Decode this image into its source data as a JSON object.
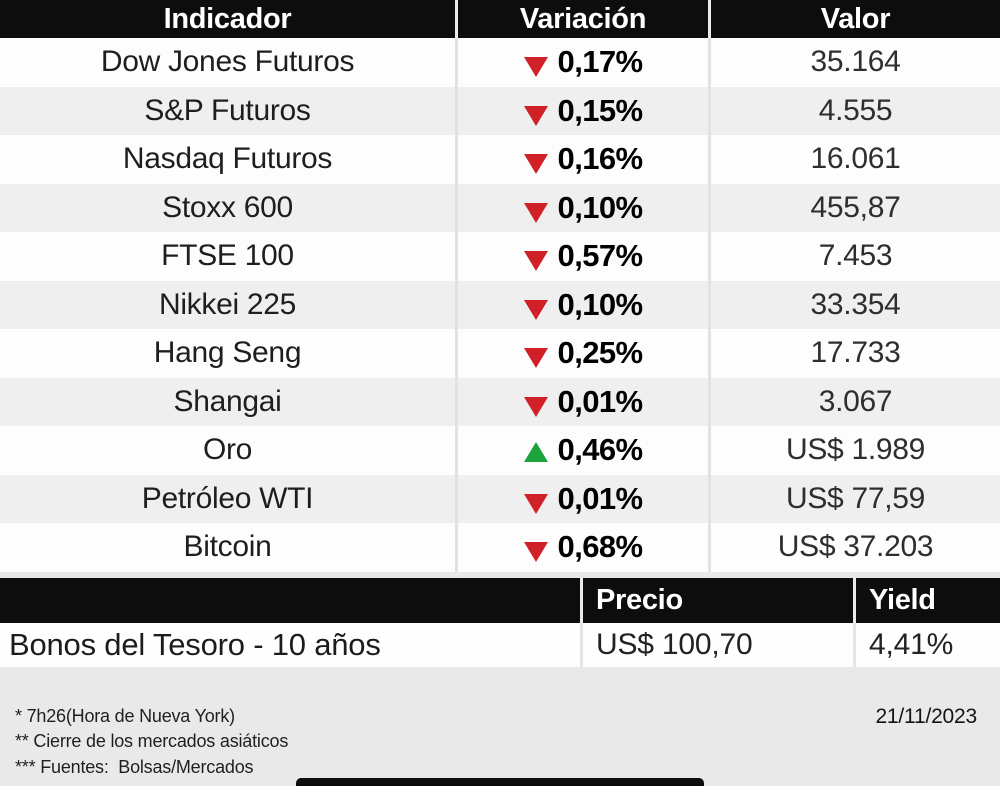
{
  "colors": {
    "header_bg": "#0d0d0d",
    "page_bg": "#e9e9e9",
    "row_alt_bg": "#efefef",
    "down_red": "#cf2127",
    "up_green": "#1ea23c"
  },
  "indicators_table": {
    "headers": {
      "indicator": "Indicador",
      "variation": "Variación",
      "value": "Valor"
    },
    "rows": [
      {
        "indicator": "Dow Jones Futuros",
        "direction": "down",
        "variation": "0,17%",
        "value": "35.164"
      },
      {
        "indicator": "S&P Futuros",
        "direction": "down",
        "variation": "0,15%",
        "value": "4.555"
      },
      {
        "indicator": "Nasdaq Futuros",
        "direction": "down",
        "variation": "0,16%",
        "value": "16.061"
      },
      {
        "indicator": "Stoxx 600",
        "direction": "down",
        "variation": "0,10%",
        "value": "455,87"
      },
      {
        "indicator": "FTSE 100",
        "direction": "down",
        "variation": "0,57%",
        "value": "7.453"
      },
      {
        "indicator": "Nikkei 225",
        "direction": "down",
        "variation": "0,10%",
        "value": "33.354"
      },
      {
        "indicator": "Hang Seng",
        "direction": "down",
        "variation": "0,25%",
        "value": "17.733"
      },
      {
        "indicator": "Shangai",
        "direction": "down",
        "variation": "0,01%",
        "value": "3.067"
      },
      {
        "indicator": "Oro",
        "direction": "up",
        "variation": "0,46%",
        "value": "US$ 1.989"
      },
      {
        "indicator": "Petróleo WTI",
        "direction": "down",
        "variation": "0,01%",
        "value": "US$ 77,59"
      },
      {
        "indicator": "Bitcoin",
        "direction": "down",
        "variation": "0,68%",
        "value": "US$ 37.203"
      }
    ]
  },
  "bonds_table": {
    "headers": {
      "price": "Precio",
      "yield": "Yield"
    },
    "row": {
      "label": "Bonos del Tesoro - 10 años",
      "price": "US$ 100,70",
      "yield": "4,41%"
    }
  },
  "footer": {
    "notes": [
      "* 7h26(Hora de Nueva York)",
      "** Cierre de los mercados asiáticos",
      "*** Fuentes:  Bolsas/Mercados"
    ],
    "date": "21/11/2023"
  },
  "chart_data": {
    "type": "table",
    "columns": [
      "Indicador",
      "Variación",
      "Valor"
    ],
    "rows": [
      [
        "Dow Jones Futuros",
        "-0,17%",
        "35.164"
      ],
      [
        "S&P Futuros",
        "-0,15%",
        "4.555"
      ],
      [
        "Nasdaq Futuros",
        "-0,16%",
        "16.061"
      ],
      [
        "Stoxx 600",
        "-0,10%",
        "455,87"
      ],
      [
        "FTSE 100",
        "-0,57%",
        "7.453"
      ],
      [
        "Nikkei 225",
        "-0,10%",
        "33.354"
      ],
      [
        "Hang Seng",
        "-0,25%",
        "17.733"
      ],
      [
        "Shangai",
        "-0,01%",
        "3.067"
      ],
      [
        "Oro",
        "+0,46%",
        "US$ 1.989"
      ],
      [
        "Petróleo WTI",
        "-0,01%",
        "US$ 77,59"
      ],
      [
        "Bitcoin",
        "-0,68%",
        "US$ 37.203"
      ]
    ],
    "secondary_table": {
      "columns": [
        "",
        "Precio",
        "Yield"
      ],
      "rows": [
        [
          "Bonos del Tesoro - 10 años",
          "US$ 100,70",
          "4,41%"
        ]
      ]
    },
    "annotations": [
      "* 7h26(Hora de Nueva York)",
      "** Cierre de los mercados asiáticos",
      "*** Fuentes:  Bolsas/Mercados",
      "21/11/2023"
    ]
  }
}
